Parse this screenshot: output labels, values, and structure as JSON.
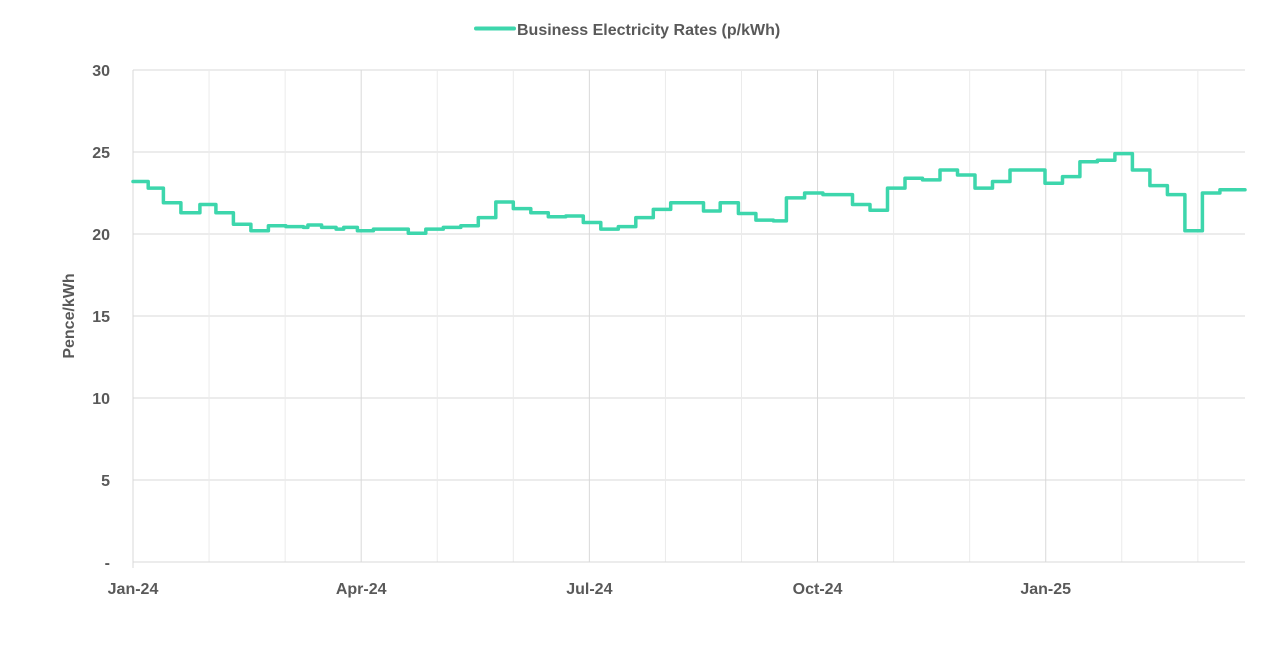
{
  "chart_data": {
    "type": "line",
    "title": "",
    "xlabel": "",
    "ylabel": "Pence/kWh",
    "ylim": [
      0,
      30
    ],
    "yticks": [
      {
        "value": 0,
        "label": "-"
      },
      {
        "value": 5,
        "label": "5"
      },
      {
        "value": 10,
        "label": "10"
      },
      {
        "value": 15,
        "label": "15"
      },
      {
        "value": 20,
        "label": "20"
      },
      {
        "value": 25,
        "label": "25"
      },
      {
        "value": 30,
        "label": "30"
      }
    ],
    "xlim": [
      0,
      14.62
    ],
    "x_unit": "months since Jan-24",
    "xtick_labels": [
      {
        "value": 0,
        "label": "Jan-24"
      },
      {
        "value": 3,
        "label": "Apr-24"
      },
      {
        "value": 6,
        "label": "Jul-24"
      },
      {
        "value": 9,
        "label": "Oct-24"
      },
      {
        "value": 12,
        "label": "Jan-25"
      }
    ],
    "minor_gridlines": [
      1,
      2,
      4,
      5,
      7,
      8,
      10,
      11,
      13,
      14
    ],
    "grid": true,
    "legend_position": "top-center",
    "series": [
      {
        "name": "Business Electricity Rates (p/kWh)",
        "color": "#3dd6ac",
        "step": true,
        "points": [
          [
            0.0,
            23.2
          ],
          [
            0.2,
            22.8
          ],
          [
            0.4,
            21.9
          ],
          [
            0.63,
            21.3
          ],
          [
            0.88,
            21.8
          ],
          [
            1.09,
            21.3
          ],
          [
            1.32,
            20.6
          ],
          [
            1.55,
            20.2
          ],
          [
            1.78,
            20.5
          ],
          [
            2.01,
            20.45
          ],
          [
            2.24,
            20.4
          ],
          [
            2.3,
            20.55
          ],
          [
            2.48,
            20.4
          ],
          [
            2.67,
            20.3
          ],
          [
            2.77,
            20.4
          ],
          [
            2.95,
            20.2
          ],
          [
            3.16,
            20.3
          ],
          [
            3.62,
            20.05
          ],
          [
            3.85,
            20.3
          ],
          [
            4.08,
            20.4
          ],
          [
            4.31,
            20.5
          ],
          [
            4.54,
            21.0
          ],
          [
            4.77,
            21.95
          ],
          [
            5.0,
            21.55
          ],
          [
            5.23,
            21.3
          ],
          [
            5.46,
            21.05
          ],
          [
            5.69,
            21.1
          ],
          [
            5.92,
            20.7
          ],
          [
            6.15,
            20.3
          ],
          [
            6.38,
            20.45
          ],
          [
            6.61,
            21.0
          ],
          [
            6.84,
            21.5
          ],
          [
            7.07,
            21.9
          ],
          [
            7.5,
            21.4
          ],
          [
            7.72,
            21.9
          ],
          [
            7.96,
            21.25
          ],
          [
            8.19,
            20.85
          ],
          [
            8.42,
            20.8
          ],
          [
            8.59,
            22.2
          ],
          [
            8.83,
            22.5
          ],
          [
            9.07,
            22.4
          ],
          [
            9.46,
            21.8
          ],
          [
            9.69,
            21.45
          ],
          [
            9.92,
            22.8
          ],
          [
            10.15,
            23.4
          ],
          [
            10.38,
            23.3
          ],
          [
            10.61,
            23.9
          ],
          [
            10.84,
            23.6
          ],
          [
            11.07,
            22.8
          ],
          [
            11.3,
            23.2
          ],
          [
            11.53,
            23.9
          ],
          [
            11.99,
            23.1
          ],
          [
            12.22,
            23.5
          ],
          [
            12.45,
            24.4
          ],
          [
            12.68,
            24.5
          ],
          [
            12.91,
            24.9
          ],
          [
            13.14,
            23.9
          ],
          [
            13.37,
            22.95
          ],
          [
            13.6,
            22.4
          ],
          [
            13.83,
            20.2
          ],
          [
            14.06,
            22.5
          ],
          [
            14.29,
            22.7
          ],
          [
            14.62,
            22.7
          ]
        ]
      }
    ]
  }
}
